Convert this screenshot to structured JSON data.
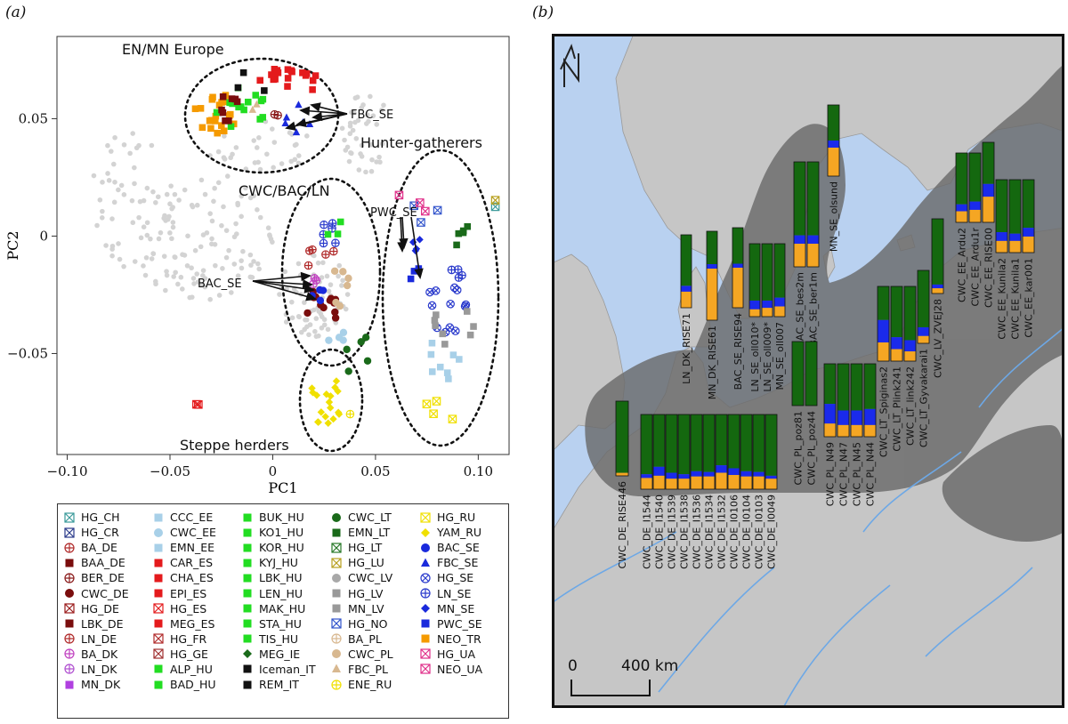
{
  "panel_a_label": "(a)",
  "panel_b_label": "(b)",
  "chart_data": [
    {
      "type": "scatter",
      "xlabel": "PC1",
      "ylabel": "PC2",
      "xlim": [
        -0.105,
        0.115
      ],
      "ylim": [
        -0.093,
        0.085
      ],
      "xticks": [
        "−0.10",
        "−0.05",
        "0",
        "0.05",
        "0.10"
      ],
      "yticks": [
        "−0.05",
        "0",
        "0.05"
      ],
      "cluster_labels": [
        "EN/MN Europe",
        "CWC/BAC/LN",
        "Hunter-gatherers",
        "Steppe herders"
      ],
      "arrow_labels": [
        "FBC_SE",
        "PWC_SE",
        "BAC_SE"
      ],
      "legend": [
        {
          "label": "HG_CH",
          "color": "#3a9a9a",
          "shape": "boxx"
        },
        {
          "label": "HG_CR",
          "color": "#2a3a8a",
          "shape": "boxx"
        },
        {
          "label": "BA_DE",
          "color": "#b02a2a",
          "shape": "circplus"
        },
        {
          "label": "BAA_DE",
          "color": "#7a0d0d",
          "shape": "square"
        },
        {
          "label": "BER_DE",
          "color": "#8a1a1a",
          "shape": "circplus"
        },
        {
          "label": "CWC_DE",
          "color": "#7a0d0d",
          "shape": "circle"
        },
        {
          "label": "HG_DE",
          "color": "#9a1a1a",
          "shape": "boxx"
        },
        {
          "label": "LBK_DE",
          "color": "#7a0d0d",
          "shape": "square"
        },
        {
          "label": "LN_DE",
          "color": "#b02a2a",
          "shape": "circplus"
        },
        {
          "label": "BA_DK",
          "color": "#c040c0",
          "shape": "circplus"
        },
        {
          "label": "LN_DK",
          "color": "#b050d0",
          "shape": "circplus"
        },
        {
          "label": "MN_DK",
          "color": "#b040e0",
          "shape": "square"
        },
        {
          "label": "CCC_EE",
          "color": "#a8d0e8",
          "shape": "square"
        },
        {
          "label": "CWC_EE",
          "color": "#a8d0e8",
          "shape": "circle"
        },
        {
          "label": "EMN_EE",
          "color": "#a8d0e8",
          "shape": "square"
        },
        {
          "label": "CAR_ES",
          "color": "#e41a1c",
          "shape": "square"
        },
        {
          "label": "CHA_ES",
          "color": "#e41a1c",
          "shape": "square"
        },
        {
          "label": "EPI_ES",
          "color": "#e41a1c",
          "shape": "square"
        },
        {
          "label": "HG_ES",
          "color": "#e41a1c",
          "shape": "boxx"
        },
        {
          "label": "MEG_ES",
          "color": "#e41a1c",
          "shape": "square"
        },
        {
          "label": "HG_FR",
          "color": "#b02a2a",
          "shape": "boxx"
        },
        {
          "label": "HG_GE",
          "color": "#a03030",
          "shape": "boxx"
        },
        {
          "label": "ALP_HU",
          "color": "#22dd22",
          "shape": "square"
        },
        {
          "label": "BAD_HU",
          "color": "#22dd22",
          "shape": "square"
        },
        {
          "label": "BUK_HU",
          "color": "#22dd22",
          "shape": "square"
        },
        {
          "label": "KO1_HU",
          "color": "#22dd22",
          "shape": "square"
        },
        {
          "label": "KOR_HU",
          "color": "#22dd22",
          "shape": "square"
        },
        {
          "label": "KYJ_HU",
          "color": "#22dd22",
          "shape": "square"
        },
        {
          "label": "LBK_HU",
          "color": "#22dd22",
          "shape": "square"
        },
        {
          "label": "LEN_HU",
          "color": "#22dd22",
          "shape": "square"
        },
        {
          "label": "MAK_HU",
          "color": "#22dd22",
          "shape": "square"
        },
        {
          "label": "STA_HU",
          "color": "#22dd22",
          "shape": "square"
        },
        {
          "label": "TIS_HU",
          "color": "#22dd22",
          "shape": "square"
        },
        {
          "label": "MEG_IE",
          "color": "#1a6a1a",
          "shape": "diamond"
        },
        {
          "label": "Iceman_IT",
          "color": "#111111",
          "shape": "square"
        },
        {
          "label": "REM_IT",
          "color": "#111111",
          "shape": "square"
        },
        {
          "label": "CWC_LT",
          "color": "#1a6a1a",
          "shape": "circle"
        },
        {
          "label": "EMN_LT",
          "color": "#1a6a1a",
          "shape": "square"
        },
        {
          "label": "HG_LT",
          "color": "#2a7a2a",
          "shape": "boxx"
        },
        {
          "label": "HG_LU",
          "color": "#b8a020",
          "shape": "boxx"
        },
        {
          "label": "CWC_LV",
          "color": "#a8a8a8",
          "shape": "circle"
        },
        {
          "label": "HG_LV",
          "color": "#999999",
          "shape": "square"
        },
        {
          "label": "MN_LV",
          "color": "#999999",
          "shape": "square"
        },
        {
          "label": "HG_NO",
          "color": "#3355cc",
          "shape": "boxx"
        },
        {
          "label": "BA_PL",
          "color": "#d8b890",
          "shape": "circplus"
        },
        {
          "label": "CWC_PL",
          "color": "#d8b890",
          "shape": "circle"
        },
        {
          "label": "FBC_PL",
          "color": "#d8b890",
          "shape": "triangle"
        },
        {
          "label": "ENE_RU",
          "color": "#f0e000",
          "shape": "circplus"
        },
        {
          "label": "HG_RU",
          "color": "#f0e000",
          "shape": "boxx"
        },
        {
          "label": "YAM_RU",
          "color": "#f0e000",
          "shape": "diamond"
        },
        {
          "label": "BAC_SE",
          "color": "#1a2adc",
          "shape": "circle"
        },
        {
          "label": "FBC_SE",
          "color": "#1a2adc",
          "shape": "triangle"
        },
        {
          "label": "HG_SE",
          "color": "#2a3acc",
          "shape": "circx"
        },
        {
          "label": "LN_SE",
          "color": "#2a3acc",
          "shape": "circplus"
        },
        {
          "label": "MN_SE",
          "color": "#1a2adc",
          "shape": "diamond"
        },
        {
          "label": "PWC_SE",
          "color": "#1a2adc",
          "shape": "square"
        },
        {
          "label": "NEO_TR",
          "color": "#f59a00",
          "shape": "square"
        },
        {
          "label": "HG_UA",
          "color": "#e0308a",
          "shape": "boxx"
        },
        {
          "label": "NEO_UA",
          "color": "#e0308a",
          "shape": "boxx"
        }
      ]
    },
    {
      "type": "bar",
      "stacked": true,
      "scale_label_zero": "0",
      "scale_label_dist": "400 km",
      "component_colors": {
        "green": "#14680f",
        "blue": "#1a2aeb",
        "orange": "#f5a623"
      },
      "series_names": [
        "green",
        "blue",
        "orange"
      ],
      "samples": [
        {
          "label": "CWC_DE_RISE446",
          "values": [
            0.96,
            0.0,
            0.04
          ]
        },
        {
          "label": "CWC_DE_I1544",
          "values": [
            0.8,
            0.05,
            0.15
          ]
        },
        {
          "label": "CWC_DE_I1540",
          "values": [
            0.7,
            0.12,
            0.18
          ]
        },
        {
          "label": "CWC_DE_I1539",
          "values": [
            0.78,
            0.08,
            0.14
          ]
        },
        {
          "label": "CWC_DE_I1538",
          "values": [
            0.8,
            0.06,
            0.14
          ]
        },
        {
          "label": "CWC_DE_I1536",
          "values": [
            0.76,
            0.07,
            0.17
          ]
        },
        {
          "label": "CWC_DE_I1534",
          "values": [
            0.77,
            0.06,
            0.17
          ]
        },
        {
          "label": "CWC_DE_I1532",
          "values": [
            0.68,
            0.1,
            0.22
          ]
        },
        {
          "label": "CWC_DE_I0106",
          "values": [
            0.72,
            0.09,
            0.19
          ]
        },
        {
          "label": "CWC_DE_I0104",
          "values": [
            0.76,
            0.07,
            0.17
          ]
        },
        {
          "label": "CWC_DE_I0103",
          "values": [
            0.77,
            0.06,
            0.17
          ]
        },
        {
          "label": "CWC_DE_I0049",
          "values": [
            0.82,
            0.04,
            0.14
          ]
        },
        {
          "label": "LN_DK_RISE71",
          "values": [
            0.7,
            0.08,
            0.22
          ]
        },
        {
          "label": "MN_DK_RISE61",
          "values": [
            0.37,
            0.05,
            0.58
          ]
        },
        {
          "label": "BAC_SE_RISE94",
          "values": [
            0.45,
            0.05,
            0.5
          ]
        },
        {
          "label": "LN_SE_oll010*",
          "values": [
            0.78,
            0.12,
            0.1
          ]
        },
        {
          "label": "LN_SE_oll009*",
          "values": [
            0.78,
            0.1,
            0.12
          ]
        },
        {
          "label": "MN_SE_oll007",
          "values": [
            0.74,
            0.12,
            0.14
          ]
        },
        {
          "label": "BAC_SE_bes2m",
          "values": [
            0.7,
            0.08,
            0.22
          ]
        },
        {
          "label": "BAC_SE_ber1m",
          "values": [
            0.7,
            0.08,
            0.22
          ]
        },
        {
          "label": "MN_SE_olsund",
          "values": [
            0.5,
            0.1,
            0.4
          ]
        },
        {
          "label": "CWC_PL_poz81",
          "values": [
            1.0,
            0.0,
            0.0
          ]
        },
        {
          "label": "CWC_PL_poz44",
          "values": [
            1.0,
            0.0,
            0.0
          ]
        },
        {
          "label": "CWC_PL_N49",
          "values": [
            0.55,
            0.27,
            0.18
          ]
        },
        {
          "label": "CWC_PL_N47",
          "values": [
            0.64,
            0.2,
            0.16
          ]
        },
        {
          "label": "CWC_PL_N45",
          "values": [
            0.64,
            0.2,
            0.16
          ]
        },
        {
          "label": "CWC_PL_N44",
          "values": [
            0.62,
            0.22,
            0.16
          ]
        },
        {
          "label": "CWC_LT_Spiginas2",
          "values": [
            0.45,
            0.3,
            0.25
          ]
        },
        {
          "label": "CWC_LT_Plink241",
          "values": [
            0.68,
            0.16,
            0.16
          ]
        },
        {
          "label": "CWC_LT_link242",
          "values": [
            0.72,
            0.15,
            0.13
          ]
        },
        {
          "label": "CWC_LT_Gyvakarai1",
          "values": [
            0.78,
            0.12,
            0.1
          ]
        },
        {
          "label": "CWC_LV_ZVEJ28",
          "values": [
            0.88,
            0.05,
            0.07
          ]
        },
        {
          "label": "CWC_EE_Ardu2",
          "values": [
            0.74,
            0.1,
            0.16
          ]
        },
        {
          "label": "CWC_EE_Ardu1r",
          "values": [
            0.7,
            0.12,
            0.18
          ]
        },
        {
          "label": "CWC_EE_RISE00",
          "values": [
            0.52,
            0.16,
            0.32
          ]
        },
        {
          "label": "CWC_EE_Kunila2",
          "values": [
            0.72,
            0.12,
            0.16
          ]
        },
        {
          "label": "CWC_EE_Kunila1",
          "values": [
            0.74,
            0.1,
            0.16
          ]
        },
        {
          "label": "CWC_EE_kar001",
          "values": [
            0.66,
            0.12,
            0.22
          ]
        }
      ]
    }
  ]
}
